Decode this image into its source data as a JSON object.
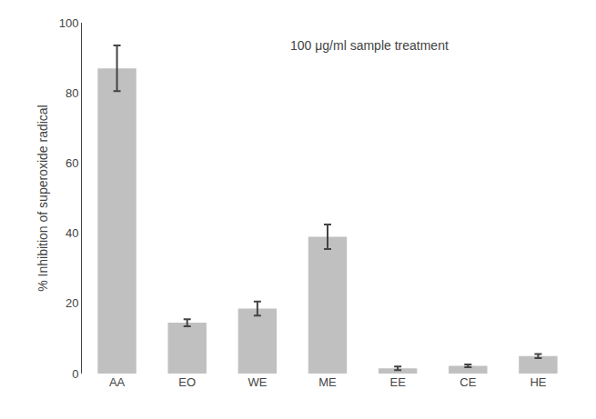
{
  "chart_data": {
    "type": "bar",
    "categories": [
      "AA",
      "EO",
      "WE",
      "ME",
      "EE",
      "CE",
      "HE"
    ],
    "values": [
      87.0,
      14.5,
      18.5,
      39.0,
      1.5,
      2.2,
      5.0
    ],
    "errors": [
      6.5,
      1.0,
      2.0,
      3.5,
      0.5,
      0.4,
      0.6
    ],
    "color": "#c0c0c0",
    "ylabel": "% Inhibition of superoxide radical",
    "annotation": "100 μg/ml sample treatment",
    "ylim": [
      0,
      100
    ],
    "yticks": [
      0,
      20,
      40,
      60,
      80,
      100
    ],
    "grid": false
  }
}
